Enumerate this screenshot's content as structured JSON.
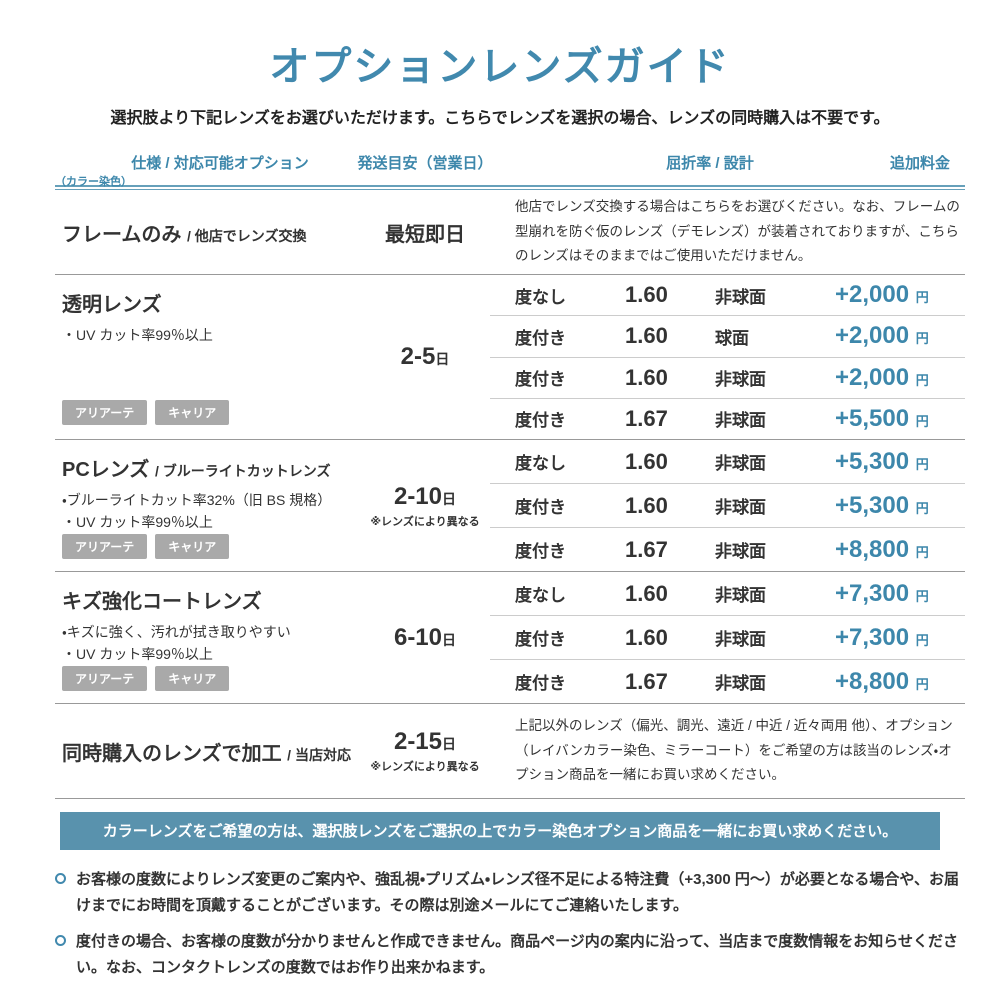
{
  "colors": {
    "accent": "#4189ae",
    "header_text": "#3d87ab",
    "price_text": "#3d87ab",
    "banner_bg": "#5992ad",
    "badge_bg": "#a9a9a9"
  },
  "title": "オプションレンズガイド",
  "subtitle": "選択肢より下記レンズをお選びいただけます。こちらでレンズを選択の場合、レンズの同時購入は不要です。",
  "header": {
    "col_spec": "仕様 / 対応可能オプション",
    "col_spec_note": "（カラー染色）",
    "col_shipping": "発送目安（営業日）",
    "col_index": "屈折率 / 設計",
    "col_price": "追加料金"
  },
  "sections": [
    {
      "name": "フレームのみ",
      "name_sub": "/ 他店でレンズ交換",
      "shipping": {
        "text": "最短即日",
        "unit": "",
        "note": ""
      },
      "description": "他店でレンズ交換する場合はこちらをお選びください。なお、フレームの型崩れを防ぐ仮のレンズ（デモレンズ）が装着されておりますが、こちらのレンズはそのままではご使用いただけません。"
    },
    {
      "name": "透明レンズ",
      "name_sub": "",
      "features": [
        "・UV カット率99％以上"
      ],
      "badges": [
        "アリアーテ",
        "キャリア"
      ],
      "shipping": {
        "text": "2-5",
        "unit": "日",
        "note": ""
      },
      "options": [
        {
          "rx": "度なし",
          "index": "1.60",
          "design": "非球面",
          "price": "+2,000",
          "unit": "円"
        },
        {
          "rx": "度付き",
          "index": "1.60",
          "design": "球面",
          "price": "+2,000",
          "unit": "円"
        },
        {
          "rx": "度付き",
          "index": "1.60",
          "design": "非球面",
          "price": "+2,000",
          "unit": "円"
        },
        {
          "rx": "度付き",
          "index": "1.67",
          "design": "非球面",
          "price": "+5,500",
          "unit": "円"
        }
      ]
    },
    {
      "name": "PCレンズ",
      "name_sub": "/ ブルーライトカットレンズ",
      "features": [
        "・ブルーライトカット率32%（旧 BS 規格）",
        "・UV カット率99％以上"
      ],
      "badges": [
        "アリアーテ",
        "キャリア"
      ],
      "shipping": {
        "text": "2-10",
        "unit": "日",
        "note": "※レンズにより異なる"
      },
      "options": [
        {
          "rx": "度なし",
          "index": "1.60",
          "design": "非球面",
          "price": "+5,300",
          "unit": "円"
        },
        {
          "rx": "度付き",
          "index": "1.60",
          "design": "非球面",
          "price": "+5,300",
          "unit": "円"
        },
        {
          "rx": "度付き",
          "index": "1.67",
          "design": "非球面",
          "price": "+8,800",
          "unit": "円"
        }
      ]
    },
    {
      "name": "キズ強化コートレンズ",
      "name_sub": "",
      "features": [
        "・キズに強く、汚れが拭き取りやすい",
        "・UV カット率99％以上"
      ],
      "badges": [
        "アリアーテ",
        "キャリア"
      ],
      "shipping": {
        "text": "6-10",
        "unit": "日",
        "note": ""
      },
      "options": [
        {
          "rx": "度なし",
          "index": "1.60",
          "design": "非球面",
          "price": "+7,300",
          "unit": "円"
        },
        {
          "rx": "度付き",
          "index": "1.60",
          "design": "非球面",
          "price": "+7,300",
          "unit": "円"
        },
        {
          "rx": "度付き",
          "index": "1.67",
          "design": "非球面",
          "price": "+8,800",
          "unit": "円"
        }
      ]
    },
    {
      "name": "同時購入のレンズで加工",
      "name_sub": "/ 当店対応",
      "shipping": {
        "text": "2-15",
        "unit": "日",
        "note": "※レンズにより異なる"
      },
      "description": "上記以外のレンズ（偏光、調光、遠近 / 中近 / 近々両用 他）、オプション（レイバンカラー染色、ミラーコート）をご希望の方は該当のレンズ・オプション商品を一緒にお買い求めください。"
    }
  ],
  "banner": "カラーレンズをご希望の方は、選択肢レンズをご選択の上でカラー染色オプション商品を一緒にお買い求めください。",
  "notes": [
    "お客様の度数によりレンズ変更のご案内や、強乱視・プリズム・レンズ径不足による特注費（+3,300 円～）が必要となる場合や、お届けまでにお時間を頂戴することがございます。その際は別途メールにてご連絡いたします。",
    "度付きの場合、お客様の度数が分かりませんと作成できません。商品ページ内の案内に沿って、当店まで度数情報をお知らせください。なお、コンタクトレンズの度数ではお作り出来かねます。"
  ]
}
